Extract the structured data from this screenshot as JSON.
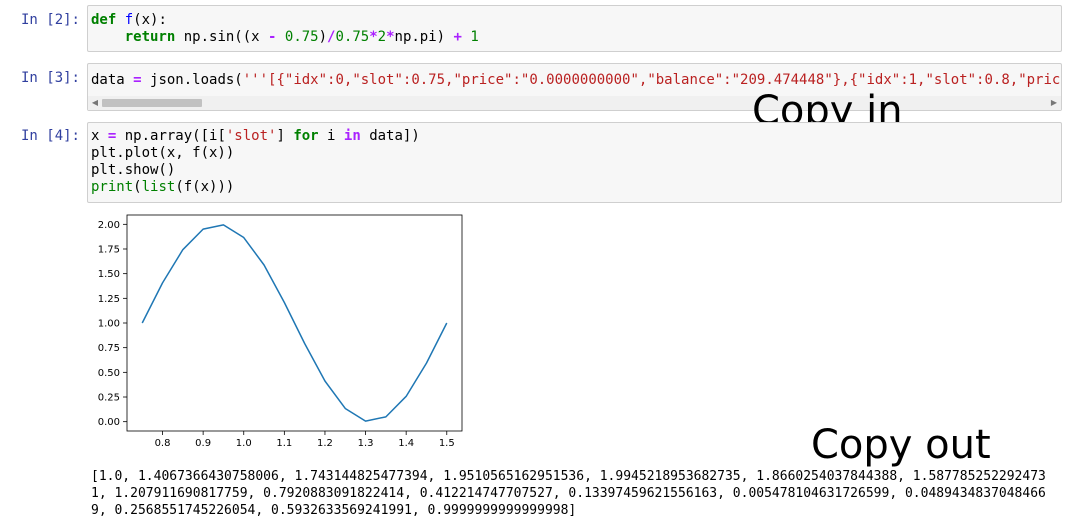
{
  "cells": [
    {
      "prompt": "In [2]:",
      "lines": [
        [
          {
            "t": "def",
            "c": "kw"
          },
          {
            "t": " "
          },
          {
            "t": "f",
            "c": "fn"
          },
          {
            "t": "(x):"
          }
        ],
        [
          {
            "t": "    "
          },
          {
            "t": "return",
            "c": "kw"
          },
          {
            "t": " np.sin((x "
          },
          {
            "t": "-",
            "c": "op"
          },
          {
            "t": " "
          },
          {
            "t": "0.75",
            "c": "num"
          },
          {
            "t": ")"
          },
          {
            "t": "/",
            "c": "op"
          },
          {
            "t": "0.75",
            "c": "num"
          },
          {
            "t": "*",
            "c": "op"
          },
          {
            "t": "2",
            "c": "num"
          },
          {
            "t": "*",
            "c": "op"
          },
          {
            "t": "np.pi) "
          },
          {
            "t": "+",
            "c": "op"
          },
          {
            "t": " "
          },
          {
            "t": "1",
            "c": "num"
          }
        ]
      ]
    },
    {
      "prompt": "In [3]:",
      "lines": [
        [
          {
            "t": "data "
          },
          {
            "t": "=",
            "c": "op"
          },
          {
            "t": " json.loads("
          },
          {
            "t": "'''[{\"idx\":0,\"slot\":0.75,\"price\":\"0.0000000000\",\"balance\":\"209.474448\"},{\"idx\":1,\"slot\":0.8,\"price",
            "c": "str"
          }
        ]
      ]
    },
    {
      "prompt": "In [4]:",
      "lines": [
        [
          {
            "t": "x "
          },
          {
            "t": "=",
            "c": "op"
          },
          {
            "t": " np.array([i["
          },
          {
            "t": "'slot'",
            "c": "str"
          },
          {
            "t": "] "
          },
          {
            "t": "for",
            "c": "kw"
          },
          {
            "t": " i "
          },
          {
            "t": "in",
            "c": "op"
          },
          {
            "t": " data])"
          }
        ],
        [
          {
            "t": "plt.plot(x, f(x))"
          }
        ],
        [
          {
            "t": "plt.show()"
          }
        ],
        [
          {
            "t": "print",
            "c": "builtin"
          },
          {
            "t": "("
          },
          {
            "t": "list",
            "c": "builtin"
          },
          {
            "t": "(f(x)))"
          }
        ]
      ]
    }
  ],
  "scrollbar": {
    "left_arrow": "◀",
    "right_arrow": "▶"
  },
  "overlays": {
    "copy_in": "Copy in",
    "copy_out": "Copy out"
  },
  "output": "[1.0, 1.4067366430758006, 1.743144825477394, 1.9510565162951536, 1.9945218953682735, 1.8660254037844388, 1.5877852522924731, 1.207911690817759, 0.7920883091822414, 0.412214747707527, 0.13397459621556163, 0.005478104631726599, 0.04894348370484669, 0.2568551745226054, 0.5932633569241991, 0.9999999999999998]",
  "chart_data": {
    "type": "line",
    "x": [
      0.75,
      0.8,
      0.85,
      0.9,
      0.95,
      1.0,
      1.05,
      1.1,
      1.15,
      1.2,
      1.25,
      1.3,
      1.35,
      1.4,
      1.45,
      1.5
    ],
    "series": [
      {
        "values": [
          1.0,
          1.4067,
          1.7431,
          1.9511,
          1.9945,
          1.866,
          1.5878,
          1.2079,
          0.7921,
          0.4122,
          0.134,
          0.0055,
          0.0489,
          0.2569,
          0.5933,
          1.0
        ]
      }
    ],
    "xticks": [
      "0.8",
      "0.9",
      "1.0",
      "1.1",
      "1.2",
      "1.3",
      "1.4",
      "1.5"
    ],
    "yticks": [
      "0.00",
      "0.25",
      "0.50",
      "0.75",
      "1.00",
      "1.25",
      "1.50",
      "1.75",
      "2.00"
    ],
    "xlim": [
      0.7125,
      1.5375
    ],
    "ylim": [
      -0.0945,
      2.0945
    ],
    "line_color": "#1f77b4",
    "grid": false
  }
}
